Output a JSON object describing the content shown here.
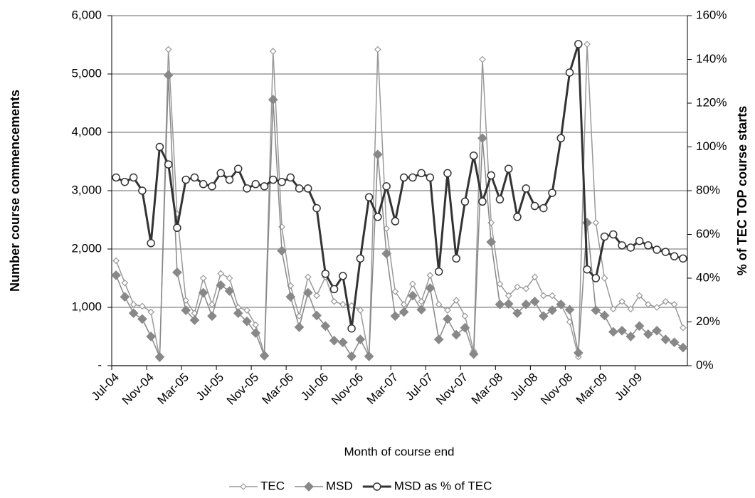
{
  "chart_data": {
    "type": "line",
    "x_label": "Month of course end",
    "y_label": "Number course commencements",
    "y2_label": "% of TEC TOP course starts",
    "categories": [
      "Jul-04",
      null,
      null,
      null,
      "Nov-04",
      null,
      null,
      null,
      "Mar-05",
      null,
      null,
      null,
      "Jul-05",
      null,
      null,
      null,
      "Nov-05",
      null,
      null,
      null,
      "Mar-06",
      null,
      null,
      null,
      "Jul-06",
      null,
      null,
      null,
      "Nov-06",
      null,
      null,
      null,
      "Mar-07",
      null,
      null,
      null,
      "Jul-07",
      null,
      null,
      null,
      "Nov-07",
      null,
      null,
      null,
      "Mar-08",
      null,
      null,
      null,
      "Jul-08",
      null,
      null,
      null,
      "Nov-08",
      null,
      null,
      null,
      "Mar-09",
      null,
      null,
      null,
      "Jul-09",
      null,
      null,
      null,
      null,
      null
    ],
    "series": [
      {
        "name": "TEC",
        "color": "#999999",
        "marker": "open-diamond",
        "values": [
          1800,
          1420,
          1050,
          1020,
          920,
          120,
          5420,
          2600,
          1120,
          900,
          1500,
          1050,
          1580,
          1500,
          1000,
          950,
          700,
          200,
          5390,
          2380,
          1370,
          850,
          1520,
          1200,
          1520,
          1100,
          1050,
          1030,
          950,
          150,
          5420,
          2350,
          1270,
          1050,
          1400,
          1100,
          1550,
          1050,
          950,
          1120,
          850,
          250,
          5250,
          2450,
          1400,
          1200,
          1350,
          1320,
          1520,
          1200,
          1200,
          1050,
          750,
          150,
          5510,
          2450,
          1500,
          970,
          1100,
          970,
          1200,
          1050,
          1000,
          1100,
          1050,
          650
        ]
      },
      {
        "name": "MSD",
        "color": "#888888",
        "marker": "filled-diamond",
        "values": [
          1550,
          1180,
          900,
          800,
          500,
          150,
          4980,
          1600,
          950,
          780,
          1250,
          850,
          1380,
          1280,
          900,
          760,
          560,
          170,
          4560,
          1970,
          1180,
          660,
          1250,
          860,
          680,
          430,
          400,
          160,
          450,
          160,
          3620,
          1920,
          850,
          920,
          1200,
          960,
          1330,
          450,
          800,
          530,
          650,
          200,
          3900,
          2120,
          1050,
          1060,
          900,
          1050,
          1100,
          850,
          950,
          1050,
          960,
          220,
          2450,
          950,
          860,
          580,
          600,
          500,
          680,
          540,
          600,
          450,
          400,
          310
        ]
      },
      {
        "name": "MSD as % of TEC",
        "color": "#333333",
        "marker": "circle",
        "axis": "y2",
        "values": [
          86,
          84,
          86,
          80,
          56,
          100,
          92,
          63,
          85,
          86,
          83,
          82,
          88,
          85,
          90,
          81,
          83,
          82,
          85,
          84,
          86,
          81,
          81,
          72,
          42,
          35,
          41,
          17,
          49,
          77,
          68,
          82,
          66,
          86,
          86,
          88,
          86,
          43,
          88,
          49,
          75,
          96,
          75,
          87,
          76,
          90,
          68,
          81,
          73,
          72,
          79,
          104,
          134,
          147,
          44,
          40,
          59,
          60,
          55,
          54,
          57,
          55,
          53,
          52,
          50,
          49
        ]
      }
    ],
    "ylim": [
      0,
      6000
    ],
    "yticks": [
      {
        "value": 0,
        "label": "-"
      },
      {
        "value": 1000,
        "label": "1,000"
      },
      {
        "value": 2000,
        "label": "2,000"
      },
      {
        "value": 3000,
        "label": "3,000"
      },
      {
        "value": 4000,
        "label": "4,000"
      },
      {
        "value": 5000,
        "label": "5,000"
      },
      {
        "value": 6000,
        "label": "6,000"
      }
    ],
    "y2lim": [
      0,
      160
    ],
    "y2ticks": [
      {
        "value": 0,
        "label": "0%"
      },
      {
        "value": 20,
        "label": "20%"
      },
      {
        "value": 40,
        "label": "40%"
      },
      {
        "value": 60,
        "label": "60%"
      },
      {
        "value": 80,
        "label": "80%"
      },
      {
        "value": 100,
        "label": "100%"
      },
      {
        "value": 120,
        "label": "120%"
      },
      {
        "value": 140,
        "label": "140%"
      },
      {
        "value": 160,
        "label": "160%"
      }
    ],
    "grid": true,
    "legend": "bottom"
  }
}
